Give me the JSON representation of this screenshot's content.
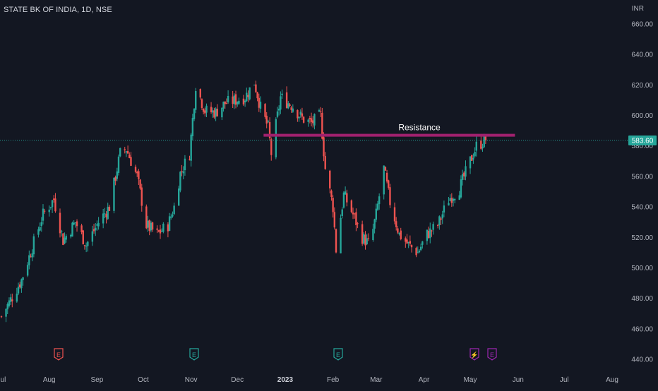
{
  "header": {
    "title": "STATE BK OF INDIA, 1D, NSE",
    "currency": "INR"
  },
  "price_label": "583.60",
  "colors": {
    "background": "#131722",
    "up": "#26a69a",
    "down": "#ef5350",
    "resistance": "#a0216e",
    "axis_text": "#b2b5be",
    "text": "#d1d4dc",
    "price_line": "#26a69a"
  },
  "events": [
    {
      "label": "E",
      "x": "Aug 2022",
      "color": "#ef5350",
      "icon": "earnings-icon"
    },
    {
      "label": "E",
      "x": "Nov 2022",
      "color": "#26a69a",
      "icon": "earnings-icon"
    },
    {
      "label": "E",
      "x": "Feb 2023",
      "color": "#26a69a",
      "icon": "earnings-icon"
    },
    {
      "label": "⚡",
      "x": "May 2023",
      "color": "#9c27b0",
      "icon": "lightning-icon"
    },
    {
      "label": "E",
      "x": "May 2023",
      "color": "#9c27b0",
      "icon": "earnings-icon"
    }
  ],
  "chart_data": {
    "type": "candlestick",
    "title": "STATE BK OF INDIA, 1D, NSE",
    "ylabel": "INR",
    "ylim": [
      435,
      670
    ],
    "yticks": [
      440,
      460,
      480,
      500,
      520,
      540,
      560,
      580,
      600,
      620,
      640,
      660
    ],
    "ytick_labels": [
      "440.00",
      "460.00",
      "480.00",
      "500.00",
      "520.00",
      "540.00",
      "560.00",
      "580.00",
      "600.00",
      "620.00",
      "640.00",
      "660.00"
    ],
    "xtick_labels": [
      "Jul",
      "Aug",
      "Sep",
      "Oct",
      "Nov",
      "Dec",
      "2023",
      "Feb",
      "Mar",
      "Apr",
      "May",
      "Jun",
      "Jul",
      "Aug"
    ],
    "last_price": 583.6,
    "annotation": {
      "text": "Resistance",
      "level": 587
    },
    "close_path": [
      [
        "2022-07-01",
        468
      ],
      [
        "2022-07-14",
        492
      ],
      [
        "2022-07-28",
        535
      ],
      [
        "2022-08-04",
        545
      ],
      [
        "2022-08-10",
        518
      ],
      [
        "2022-08-18",
        530
      ],
      [
        "2022-08-25",
        515
      ],
      [
        "2022-09-02",
        530
      ],
      [
        "2022-09-09",
        540
      ],
      [
        "2022-09-16",
        575
      ],
      [
        "2022-09-20",
        578
      ],
      [
        "2022-09-27",
        560
      ],
      [
        "2022-10-03",
        528
      ],
      [
        "2022-10-10",
        522
      ],
      [
        "2022-10-17",
        528
      ],
      [
        "2022-10-21",
        540
      ],
      [
        "2022-10-25",
        562
      ],
      [
        "2022-10-31",
        575
      ],
      [
        "2022-11-04",
        620
      ],
      [
        "2022-11-10",
        603
      ],
      [
        "2022-11-17",
        602
      ],
      [
        "2022-11-23",
        608
      ],
      [
        "2022-11-30",
        610
      ],
      [
        "2022-12-06",
        612
      ],
      [
        "2022-12-12",
        622
      ],
      [
        "2022-12-16",
        605
      ],
      [
        "2022-12-21",
        592
      ],
      [
        "2022-12-23",
        575
      ],
      [
        "2022-12-29",
        612
      ],
      [
        "2023-01-06",
        606
      ],
      [
        "2023-01-12",
        598
      ],
      [
        "2023-01-18",
        595
      ],
      [
        "2023-01-24",
        600
      ],
      [
        "2023-01-27",
        565
      ],
      [
        "2023-02-01",
        540
      ],
      [
        "2023-02-03",
        512
      ],
      [
        "2023-02-08",
        548
      ],
      [
        "2023-02-14",
        535
      ],
      [
        "2023-02-20",
        520
      ],
      [
        "2023-02-25",
        515
      ],
      [
        "2023-03-01",
        535
      ],
      [
        "2023-03-06",
        565
      ],
      [
        "2023-03-10",
        543
      ],
      [
        "2023-03-16",
        522
      ],
      [
        "2023-03-22",
        515
      ],
      [
        "2023-03-28",
        510
      ],
      [
        "2023-04-03",
        522
      ],
      [
        "2023-04-10",
        528
      ],
      [
        "2023-04-17",
        545
      ],
      [
        "2023-04-24",
        552
      ],
      [
        "2023-05-01",
        570
      ],
      [
        "2023-05-05",
        580
      ],
      [
        "2023-05-11",
        583.6
      ]
    ]
  }
}
